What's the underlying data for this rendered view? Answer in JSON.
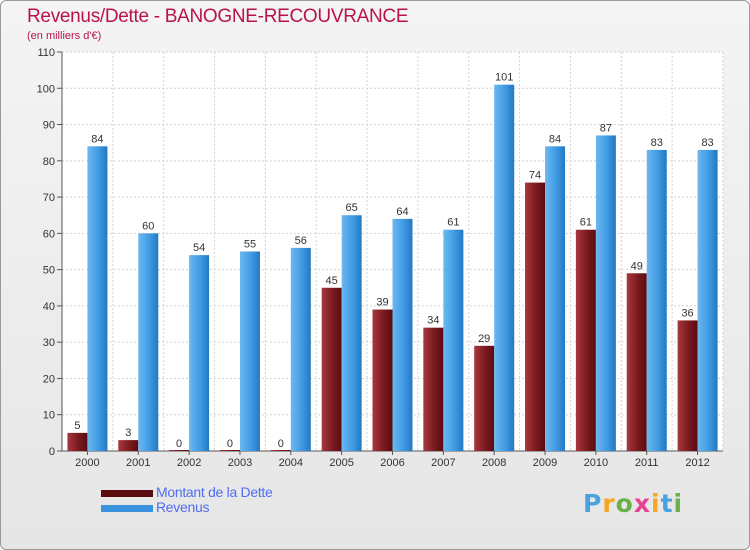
{
  "header": {
    "title": "Revenus/Dette - BANOGNE-RECOUVRANCE",
    "subtitle": "(en milliers d'€)"
  },
  "chart_data": {
    "type": "bar",
    "title": "Revenus/Dette - BANOGNE-RECOUVRANCE",
    "subtitle": "(en milliers d'€)",
    "xlabel": "",
    "ylabel": "",
    "ylim": [
      0,
      110
    ],
    "yticks": [
      0,
      10,
      20,
      30,
      40,
      50,
      60,
      70,
      80,
      90,
      100,
      110
    ],
    "grid": true,
    "legend_position": "bottom-left",
    "categories": [
      "2000",
      "2001",
      "2002",
      "2003",
      "2004",
      "2005",
      "2006",
      "2007",
      "2008",
      "2009",
      "2010",
      "2011",
      "2012"
    ],
    "series": [
      {
        "name": "Montant de la Dette",
        "color": "#7a1a1f",
        "values": [
          5,
          3,
          0,
          0,
          0,
          45,
          39,
          34,
          29,
          74,
          61,
          49,
          36
        ]
      },
      {
        "name": "Revenus",
        "color": "#2f8fdc",
        "values": [
          84,
          60,
          54,
          55,
          56,
          65,
          64,
          61,
          101,
          84,
          87,
          83,
          83
        ]
      }
    ]
  },
  "legend": {
    "items": [
      {
        "label": "Montant de la Dette",
        "color": "#5a0b10"
      },
      {
        "label": "Revenus",
        "color": "#3b93de"
      }
    ]
  },
  "logo": {
    "letters": [
      "P",
      "r",
      "o",
      "x",
      "i",
      "t",
      "i"
    ],
    "colors": [
      "#4aa3df",
      "#f5a623",
      "#6ab04c",
      "#e84393",
      "#f5a623",
      "#4aa3df",
      "#6ab04c"
    ]
  }
}
